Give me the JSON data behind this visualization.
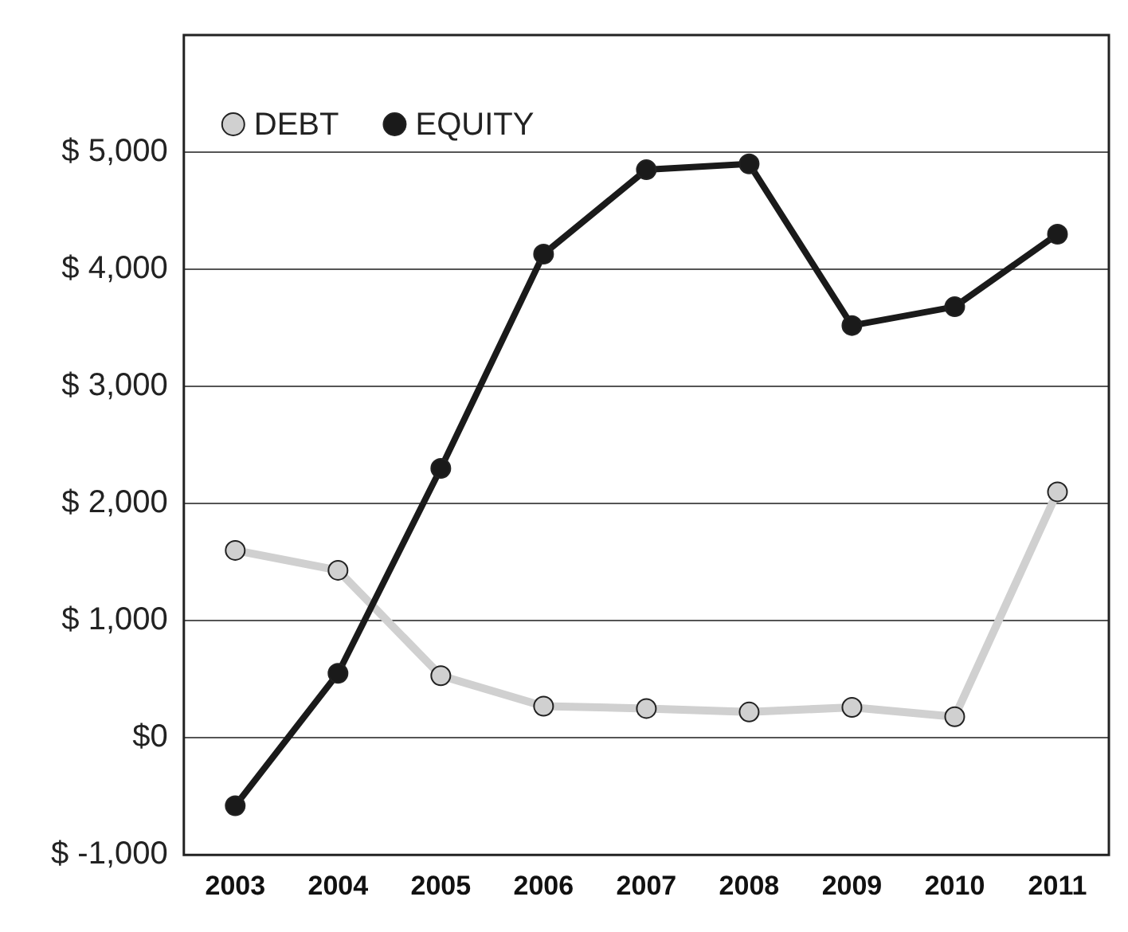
{
  "chart_data": {
    "type": "line",
    "categories": [
      "2003",
      "2004",
      "2005",
      "2006",
      "2007",
      "2008",
      "2009",
      "2010",
      "2011"
    ],
    "series": [
      {
        "name": "DEBT",
        "color": "#d0d0d0",
        "values": [
          1600,
          1430,
          530,
          270,
          250,
          220,
          260,
          180,
          2100
        ]
      },
      {
        "name": "EQUITY",
        "color": "#1a1a1a",
        "values": [
          -580,
          550,
          2300,
          4130,
          4850,
          4900,
          3520,
          3680,
          4300
        ]
      }
    ],
    "ylim": [
      -1000,
      6000
    ],
    "yticks": [
      {
        "value": -1000,
        "label": "$ -1,000"
      },
      {
        "value": 0,
        "label": "$0"
      },
      {
        "value": 1000,
        "label": "$ 1,000"
      },
      {
        "value": 2000,
        "label": "$ 2,000"
      },
      {
        "value": 3000,
        "label": "$ 3,000"
      },
      {
        "value": 4000,
        "label": "$ 4,000"
      },
      {
        "value": 5000,
        "label": "$ 5,000"
      },
      {
        "value": 6000,
        "label": null
      }
    ],
    "grid": "y",
    "legend": "top left",
    "marker": "circle",
    "line_style": "solid"
  }
}
